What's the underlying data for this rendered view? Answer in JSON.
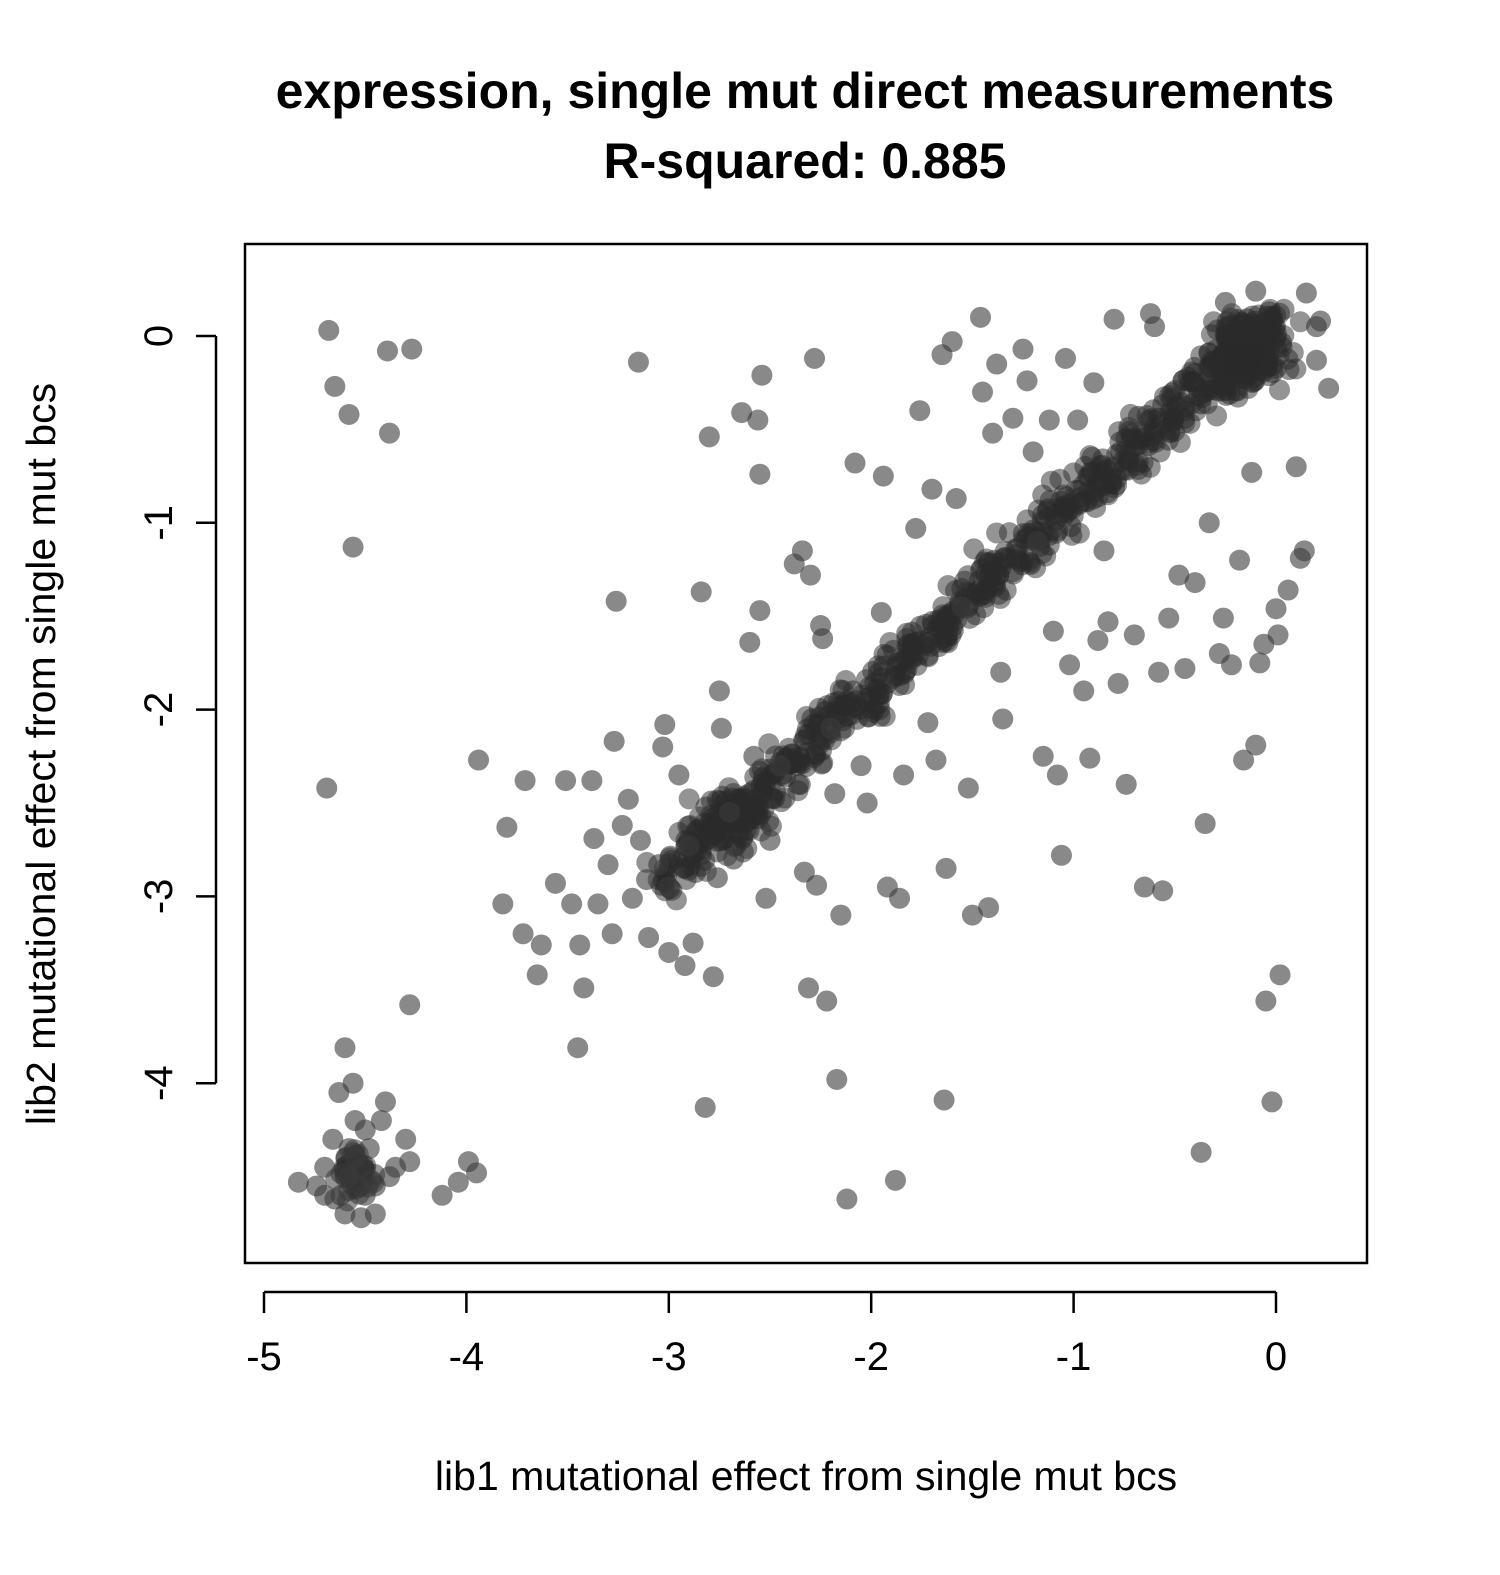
{
  "chart_data": {
    "type": "scatter",
    "title": "expression, single mut direct measurements",
    "subtitle": "R-squared: 0.885",
    "xlabel": "lib1 mutational effect from single mut bcs",
    "ylabel": "lib2 mutational effect from single mut bcs",
    "xlim": [
      -5.0,
      0.5
    ],
    "ylim": [
      -4.95,
      0.5
    ],
    "xticks": [
      -5,
      -4,
      -3,
      -2,
      -1,
      0
    ],
    "xtick_labels": [
      "-5",
      "-4",
      "-3",
      "-2",
      "-1",
      "0"
    ],
    "yticks": [
      0,
      -1,
      -2,
      -3,
      -4
    ],
    "ytick_labels": [
      "0",
      "-1",
      "-2",
      "-3",
      "-4"
    ],
    "grid": false,
    "legend": "none",
    "point_color": "#3a3a3a",
    "point_opacity": 0.6,
    "points": [
      [
        -4.68,
        0.03
      ],
      [
        -4.65,
        -0.27
      ],
      [
        -4.58,
        -0.42
      ],
      [
        -4.39,
        -0.08
      ],
      [
        -4.27,
        -0.07
      ],
      [
        -4.38,
        -0.52
      ],
      [
        -4.56,
        -1.13
      ],
      [
        -4.69,
        -2.42
      ],
      [
        -4.6,
        -3.81
      ],
      [
        -4.28,
        -3.58
      ],
      [
        -4.83,
        -4.53
      ],
      [
        -4.74,
        -4.55
      ],
      [
        -4.7,
        -4.45
      ],
      [
        -4.66,
        -4.3
      ],
      [
        -4.63,
        -4.05
      ],
      [
        -4.62,
        -4.6
      ],
      [
        -4.58,
        -4.5
      ],
      [
        -4.55,
        -4.4
      ],
      [
        -4.52,
        -4.45
      ],
      [
        -4.5,
        -4.6
      ],
      [
        -4.48,
        -4.35
      ],
      [
        -4.45,
        -4.55
      ],
      [
        -4.42,
        -4.2
      ],
      [
        -4.38,
        -4.5
      ],
      [
        -4.35,
        -4.45
      ],
      [
        -4.55,
        -4.2
      ],
      [
        -4.52,
        -4.72
      ],
      [
        -4.6,
        -4.7
      ],
      [
        -4.56,
        -4.0
      ],
      [
        -4.45,
        -4.7
      ],
      [
        -4.4,
        -4.1
      ],
      [
        -4.3,
        -4.3
      ],
      [
        -4.28,
        -4.42
      ],
      [
        -4.65,
        -4.62
      ],
      [
        -4.7,
        -4.6
      ],
      [
        -4.58,
        -4.35
      ],
      [
        -4.5,
        -4.25
      ],
      [
        -4.47,
        -4.52
      ],
      [
        -4.53,
        -4.55
      ],
      [
        -4.6,
        -4.48
      ],
      [
        -4.12,
        -4.6
      ],
      [
        -4.04,
        -4.53
      ],
      [
        -3.99,
        -4.42
      ],
      [
        -3.95,
        -4.48
      ],
      [
        -3.94,
        -2.27
      ],
      [
        -3.8,
        -2.63
      ],
      [
        -3.82,
        -3.04
      ],
      [
        -3.71,
        -2.38
      ],
      [
        -3.72,
        -3.2
      ],
      [
        -3.63,
        -3.26
      ],
      [
        -3.65,
        -3.42
      ],
      [
        -3.56,
        -2.93
      ],
      [
        -3.51,
        -2.38
      ],
      [
        -3.48,
        -3.04
      ],
      [
        -3.44,
        -3.26
      ],
      [
        -3.42,
        -3.49
      ],
      [
        -3.45,
        -3.81
      ],
      [
        -3.38,
        -2.38
      ],
      [
        -3.37,
        -2.69
      ],
      [
        -3.35,
        -3.04
      ],
      [
        -3.3,
        -2.83
      ],
      [
        -3.27,
        -2.17
      ],
      [
        -3.26,
        -1.42
      ],
      [
        -3.28,
        -3.2
      ],
      [
        -3.23,
        -2.62
      ],
      [
        -3.2,
        -2.48
      ],
      [
        -3.18,
        -3.01
      ],
      [
        -3.15,
        -0.14
      ],
      [
        -3.14,
        -2.7
      ],
      [
        -3.11,
        -2.91
      ],
      [
        -3.1,
        -3.22
      ],
      [
        -3.05,
        -2.83
      ],
      [
        -3.03,
        -2.2
      ],
      [
        -3.02,
        -2.08
      ],
      [
        -3.0,
        -2.95
      ],
      [
        -3.0,
        -3.3
      ],
      [
        -2.95,
        -2.35
      ],
      [
        -2.92,
        -3.37
      ],
      [
        -2.9,
        -2.73
      ],
      [
        -2.88,
        -3.25
      ],
      [
        -2.84,
        -1.37
      ],
      [
        -2.82,
        -4.13
      ],
      [
        -2.8,
        -0.54
      ],
      [
        -2.78,
        -3.43
      ],
      [
        -2.76,
        -2.9
      ],
      [
        -2.75,
        -1.9
      ],
      [
        -2.74,
        -2.1
      ],
      [
        -2.7,
        -2.55
      ],
      [
        -2.68,
        -2.8
      ],
      [
        -2.64,
        -0.41
      ],
      [
        -2.6,
        -1.64
      ],
      [
        -2.58,
        -2.25
      ],
      [
        -2.56,
        -0.45
      ],
      [
        -2.55,
        -0.74
      ],
      [
        -2.55,
        -1.47
      ],
      [
        -2.54,
        -0.21
      ],
      [
        -2.52,
        -3.01
      ],
      [
        -2.5,
        -2.7
      ],
      [
        -2.45,
        -2.3
      ],
      [
        -2.38,
        -1.22
      ],
      [
        -2.34,
        -1.15
      ],
      [
        -2.33,
        -2.87
      ],
      [
        -2.31,
        -3.49
      ],
      [
        -2.3,
        -1.28
      ],
      [
        -2.28,
        -0.12
      ],
      [
        -2.27,
        -2.94
      ],
      [
        -2.25,
        -1.55
      ],
      [
        -2.24,
        -1.62
      ],
      [
        -2.22,
        -3.56
      ],
      [
        -2.2,
        -2.1
      ],
      [
        -2.18,
        -2.45
      ],
      [
        -2.17,
        -3.98
      ],
      [
        -2.15,
        -3.1
      ],
      [
        -2.12,
        -4.62
      ],
      [
        -2.08,
        -0.68
      ],
      [
        -2.05,
        -2.3
      ],
      [
        -2.02,
        -2.5
      ],
      [
        -1.95,
        -1.48
      ],
      [
        -1.94,
        -0.75
      ],
      [
        -1.92,
        -2.95
      ],
      [
        -1.88,
        -4.52
      ],
      [
        -1.86,
        -3.01
      ],
      [
        -1.84,
        -2.35
      ],
      [
        -1.78,
        -1.03
      ],
      [
        -1.76,
        -0.4
      ],
      [
        -1.72,
        -2.07
      ],
      [
        -1.7,
        -0.82
      ],
      [
        -1.68,
        -2.27
      ],
      [
        -1.65,
        -0.1
      ],
      [
        -1.64,
        -4.09
      ],
      [
        -1.63,
        -2.85
      ],
      [
        -1.6,
        -0.03
      ],
      [
        -1.58,
        -0.87
      ],
      [
        -1.55,
        -1.45
      ],
      [
        -1.52,
        -2.42
      ],
      [
        -1.5,
        -3.1
      ],
      [
        -1.46,
        0.1
      ],
      [
        -1.45,
        -0.3
      ],
      [
        -1.42,
        -3.06
      ],
      [
        -1.4,
        -0.52
      ],
      [
        -1.38,
        -0.15
      ],
      [
        -1.36,
        -1.8
      ],
      [
        -1.35,
        -2.05
      ],
      [
        -1.3,
        -0.44
      ],
      [
        -1.25,
        -0.07
      ],
      [
        -1.23,
        -0.24
      ],
      [
        -1.2,
        -0.62
      ],
      [
        -1.18,
        -1.1
      ],
      [
        -1.15,
        -2.25
      ],
      [
        -1.12,
        -0.45
      ],
      [
        -1.1,
        -1.58
      ],
      [
        -1.08,
        -2.35
      ],
      [
        -1.06,
        -2.78
      ],
      [
        -1.04,
        -0.12
      ],
      [
        -1.02,
        -1.76
      ],
      [
        -0.98,
        -0.45
      ],
      [
        -0.95,
        -1.9
      ],
      [
        -0.92,
        -2.26
      ],
      [
        -0.9,
        -0.25
      ],
      [
        -0.88,
        -1.63
      ],
      [
        -0.85,
        -1.15
      ],
      [
        -0.83,
        -1.53
      ],
      [
        -0.8,
        0.09
      ],
      [
        -0.78,
        -1.86
      ],
      [
        -0.74,
        -2.4
      ],
      [
        -0.7,
        -1.6
      ],
      [
        -0.68,
        -0.43
      ],
      [
        -0.65,
        -2.95
      ],
      [
        -0.62,
        0.12
      ],
      [
        -0.58,
        -1.8
      ],
      [
        -0.56,
        -2.97
      ],
      [
        -0.53,
        -1.51
      ],
      [
        -0.48,
        -1.28
      ],
      [
        -0.45,
        -1.78
      ],
      [
        -0.4,
        -1.32
      ],
      [
        -0.37,
        -4.37
      ],
      [
        -0.35,
        -2.61
      ],
      [
        -0.33,
        -1.0
      ],
      [
        -0.28,
        -1.7
      ],
      [
        -0.26,
        -1.51
      ],
      [
        -0.22,
        -1.76
      ],
      [
        -0.18,
        -1.2
      ],
      [
        -0.16,
        -2.27
      ],
      [
        -0.12,
        -0.73
      ],
      [
        -0.1,
        -2.19
      ],
      [
        -0.08,
        -1.75
      ],
      [
        -0.06,
        -1.65
      ],
      [
        -0.05,
        -3.56
      ],
      [
        -0.02,
        -4.1
      ],
      [
        0.0,
        -1.46
      ],
      [
        0.01,
        -1.6
      ],
      [
        0.02,
        -3.42
      ],
      [
        0.06,
        -1.36
      ],
      [
        0.1,
        -0.7
      ],
      [
        0.12,
        -1.19
      ],
      [
        0.14,
        -1.15
      ],
      [
        0.15,
        0.23
      ],
      [
        0.2,
        -0.13
      ],
      [
        0.22,
        0.08
      ],
      [
        0.26,
        -0.28
      ],
      [
        0.2,
        0.05
      ],
      [
        -0.1,
        0.24
      ],
      [
        -0.25,
        0.18
      ],
      [
        -0.6,
        0.05
      ]
    ]
  }
}
